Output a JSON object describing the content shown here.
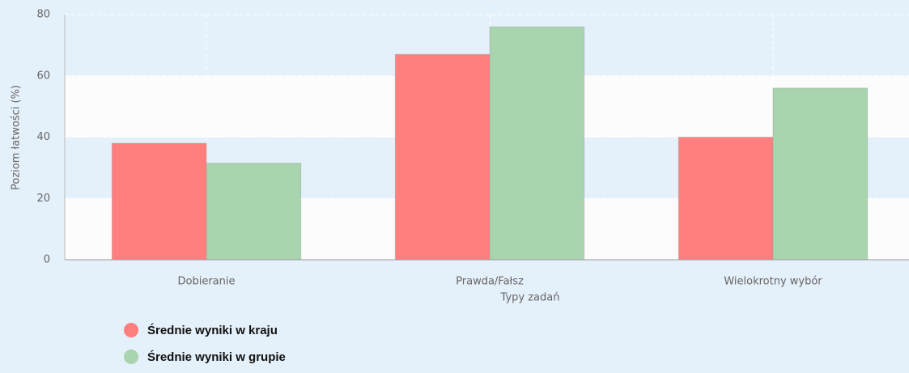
{
  "chart_data": {
    "type": "bar",
    "categories": [
      "Dobieranie",
      "Prawda/Fałsz",
      "Wielokrotny wybór"
    ],
    "series": [
      {
        "name": "Średnie wyniki w kraju",
        "color": "#ff7f7f",
        "values": [
          38,
          67,
          40
        ]
      },
      {
        "name": "Średnie wyniki w grupie",
        "color": "#a8d4ae",
        "values": [
          31.5,
          76,
          56
        ]
      }
    ],
    "ylim": [
      0,
      80
    ],
    "yticks": [
      0,
      20,
      40,
      60,
      80
    ],
    "y_label": "Poziom łatwości (%)",
    "x_label": "Typy zadań",
    "grid": true
  }
}
